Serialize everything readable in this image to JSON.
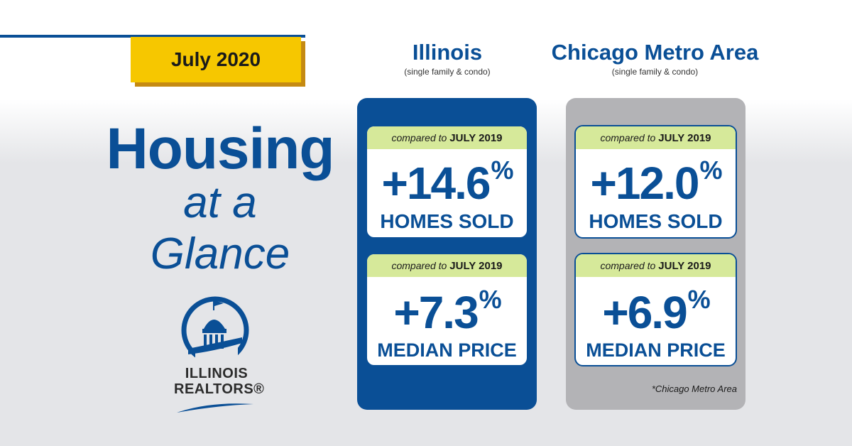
{
  "date_badge": "July 2020",
  "title": {
    "line1": "Housing",
    "line2": "at a",
    "line3": "Glance"
  },
  "logo": {
    "line1": "ILLINOIS",
    "line2": "REALTORS®"
  },
  "compare_prefix": "compared to",
  "compare_year": "JULY 2019",
  "regions": [
    {
      "name": "Illinois",
      "subtitle": "(single family & condo)",
      "homes_sold": {
        "value": "+14.6",
        "unit": "%",
        "label": "HOMES SOLD"
      },
      "median_price": {
        "value": "+7.3",
        "unit": "%",
        "label": "MEDIAN PRICE"
      }
    },
    {
      "name": "Chicago Metro Area",
      "subtitle": "(single family & condo)",
      "homes_sold": {
        "value": "+12.0",
        "unit": "%",
        "label": "HOMES SOLD"
      },
      "median_price": {
        "value": "+6.9",
        "unit": "%",
        "label": "MEDIAN PRICE"
      },
      "footnote": "*Chicago Metro Area"
    }
  ],
  "colors": {
    "brand_blue": "#0a4f96",
    "badge_yellow": "#f6c700",
    "header_green": "#d6e99a",
    "panel_gray": "#b3b3b6"
  }
}
